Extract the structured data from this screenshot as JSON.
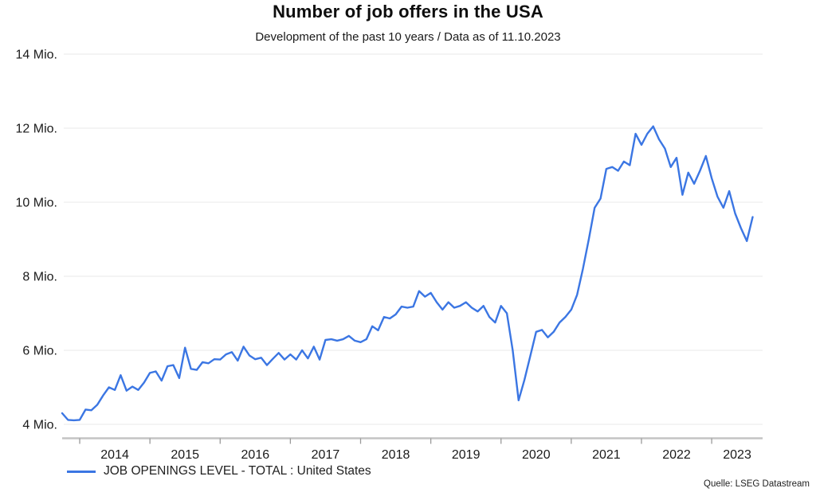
{
  "header": {
    "title": "Number of job offers in the USA",
    "subtitle": "Development of the past 10 years / Data as of 11.10.2023"
  },
  "legend": {
    "label": "JOB OPENINGS LEVEL - TOTAL : United States"
  },
  "source": {
    "text": "Quelle: LSEG Datastream"
  },
  "colors": {
    "line": "#3b76e3",
    "gridline": "#e8e8e8",
    "axis_line": "#c4c4c4",
    "tick": "#9a9a9a",
    "axis_label": "#1a1a1a"
  },
  "chart_data": {
    "type": "line",
    "title": "Number of job offers in the USA",
    "subtitle": "Development of the past 10 years / Data as of 11.10.2023",
    "unit": "Mio.",
    "frequency": "monthly",
    "x_start": "2013-10",
    "x_end": "2023-08",
    "ylim": [
      4,
      14
    ],
    "grid": "horizontal",
    "legend_position": "bottom-left",
    "y_ticks": [
      {
        "value": 4,
        "label": "4 Mio."
      },
      {
        "value": 6,
        "label": "6 Mio."
      },
      {
        "value": 8,
        "label": "8 Mio."
      },
      {
        "value": 10,
        "label": "10 Mio."
      },
      {
        "value": 12,
        "label": "12 Mio."
      },
      {
        "value": 14,
        "label": "14 Mio."
      }
    ],
    "x_year_ticks": [
      "2014",
      "2015",
      "2016",
      "2017",
      "2018",
      "2019",
      "2020",
      "2021",
      "2022",
      "2023"
    ],
    "series": [
      {
        "name": "JOB OPENINGS LEVEL - TOTAL : United States",
        "color": "#3b76e3",
        "values": [
          4.3,
          4.12,
          4.11,
          4.12,
          4.4,
          4.38,
          4.53,
          4.78,
          5.0,
          4.93,
          5.33,
          4.91,
          5.02,
          4.93,
          5.13,
          5.39,
          5.43,
          5.18,
          5.57,
          5.6,
          5.25,
          6.07,
          5.5,
          5.47,
          5.68,
          5.65,
          5.76,
          5.75,
          5.89,
          5.95,
          5.72,
          6.1,
          5.86,
          5.76,
          5.8,
          5.6,
          5.77,
          5.93,
          5.75,
          5.89,
          5.75,
          6.0,
          5.78,
          6.1,
          5.75,
          6.28,
          6.3,
          6.26,
          6.3,
          6.39,
          6.26,
          6.22,
          6.3,
          6.65,
          6.54,
          6.9,
          6.86,
          6.97,
          7.18,
          7.15,
          7.18,
          7.6,
          7.45,
          7.55,
          7.3,
          7.1,
          7.3,
          7.15,
          7.2,
          7.3,
          7.15,
          7.05,
          7.2,
          6.9,
          6.75,
          7.2,
          7.0,
          6.0,
          4.65,
          5.2,
          5.85,
          6.5,
          6.55,
          6.35,
          6.5,
          6.75,
          6.9,
          7.1,
          7.5,
          8.2,
          9.0,
          9.85,
          10.1,
          10.9,
          10.95,
          10.85,
          11.1,
          11.0,
          11.85,
          11.55,
          11.85,
          12.05,
          11.7,
          11.45,
          10.95,
          11.2,
          10.2,
          10.8,
          10.5,
          10.85,
          11.25,
          10.65,
          10.15,
          9.85,
          10.3,
          9.7,
          9.3,
          8.95,
          9.6
        ]
      }
    ]
  }
}
